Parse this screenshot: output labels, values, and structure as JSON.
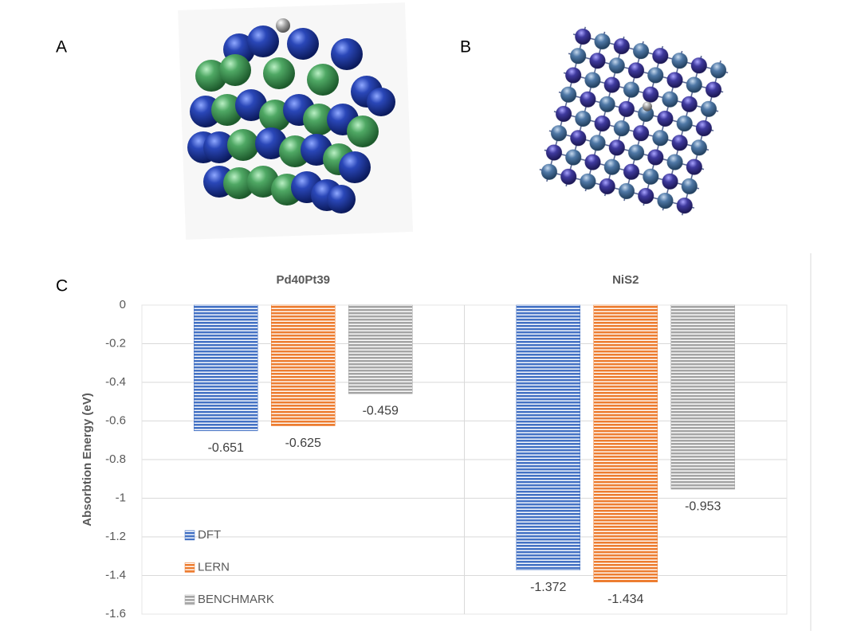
{
  "panel_labels": [
    "A",
    "B",
    "C"
  ],
  "chart_data": {
    "type": "bar",
    "categories": [
      "Pd40Pt39",
      "NiS2"
    ],
    "y_label": "Absorbtion Energy (eV)",
    "series": [
      {
        "name": "DFT",
        "color": "#4472c4",
        "values": [
          -0.651,
          -1.372
        ]
      },
      {
        "name": "LERN",
        "color": "#ed7d31",
        "values": [
          -0.625,
          -1.434
        ]
      },
      {
        "name": "BENCHMARK",
        "color": "#a5a5a5",
        "values": [
          -0.459,
          -0.953
        ]
      }
    ],
    "ylim": [
      -1.6,
      0
    ],
    "yticks": [
      0,
      -0.2,
      -0.4,
      -0.6,
      -0.8,
      -1,
      -1.2,
      -1.4,
      -1.6
    ],
    "grid": true,
    "legend": "bottom-left"
  }
}
